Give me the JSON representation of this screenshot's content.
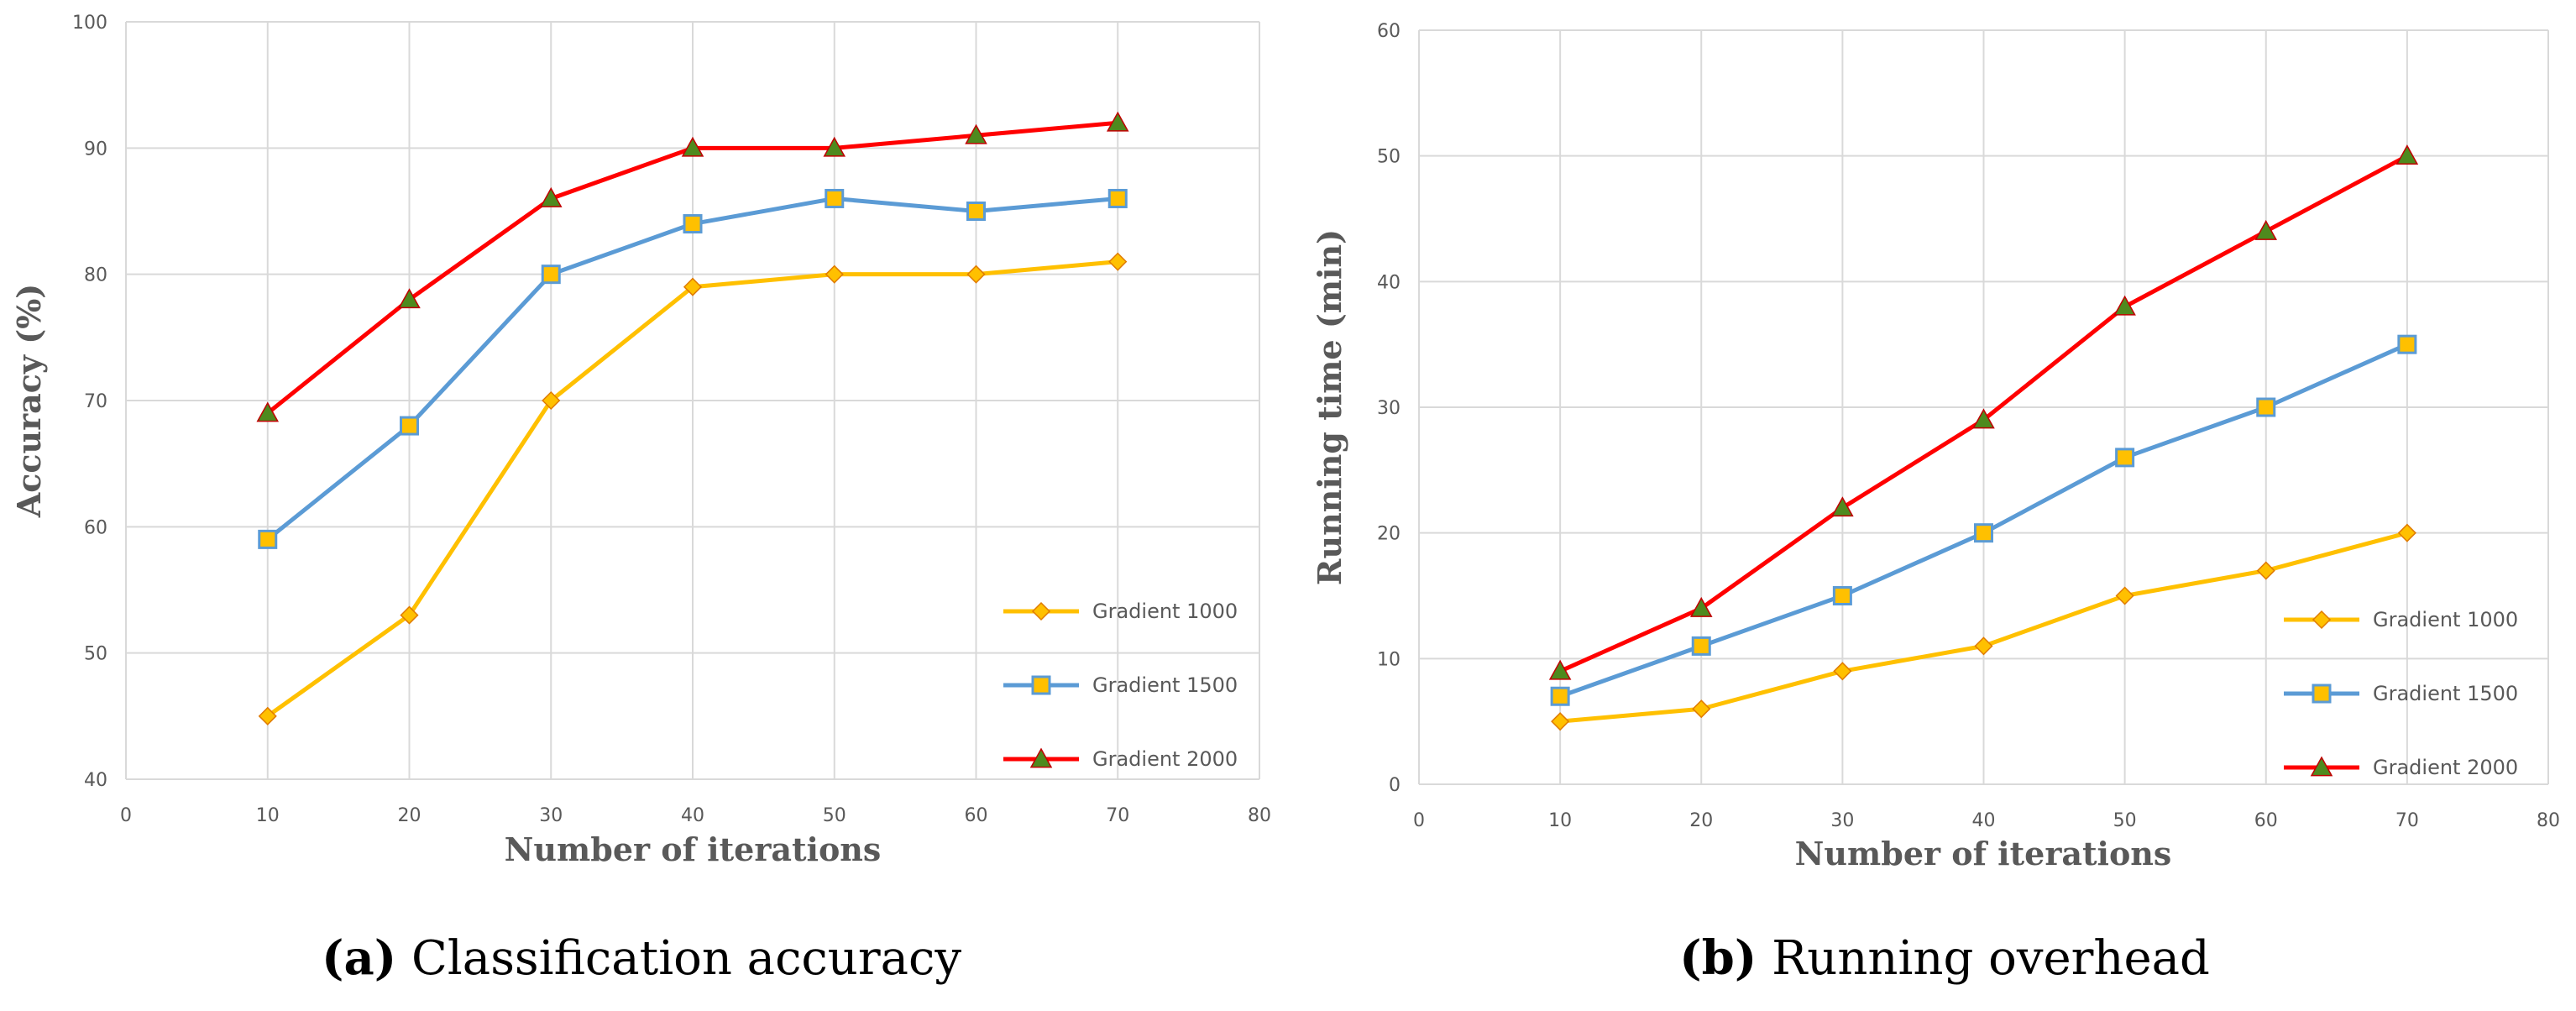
{
  "chart_data": [
    {
      "type": "line",
      "caption_letter": "(a)",
      "caption_text": "Classification accuracy",
      "xlabel": "Number of iterations",
      "ylabel": "Accuracy  (%)",
      "xlim": [
        0,
        80
      ],
      "ylim": [
        40,
        100
      ],
      "xticks": [
        0,
        10,
        20,
        30,
        40,
        50,
        60,
        70,
        80
      ],
      "yticks": [
        40,
        50,
        60,
        70,
        80,
        90,
        100
      ],
      "grid": true,
      "legend_position": "bottom-right",
      "x": [
        10,
        20,
        30,
        40,
        50,
        60,
        70
      ],
      "series": [
        {
          "name": "Gradient 1000",
          "color": "#FFC000",
          "marker": "diamond",
          "values": [
            45,
            53,
            70,
            79,
            80,
            80,
            81
          ]
        },
        {
          "name": "Gradient 1500",
          "color": "#5B9BD5",
          "marker": "square",
          "values": [
            59,
            68,
            80,
            84,
            86,
            85,
            86
          ]
        },
        {
          "name": "Gradient 2000",
          "color": "#FF0000",
          "marker": "triangle",
          "values": [
            69,
            78,
            86,
            90,
            90,
            91,
            92
          ]
        }
      ]
    },
    {
      "type": "line",
      "caption_letter": "(b)",
      "caption_text": "Running overhead",
      "xlabel": "Number of iterations",
      "ylabel": "Running time (min)",
      "xlim": [
        0,
        80
      ],
      "ylim": [
        0,
        60
      ],
      "xticks": [
        0,
        10,
        20,
        30,
        40,
        50,
        60,
        70,
        80
      ],
      "yticks": [
        0,
        10,
        20,
        30,
        40,
        50,
        60
      ],
      "grid": true,
      "legend_position": "bottom-right",
      "x": [
        10,
        20,
        30,
        40,
        50,
        60,
        70
      ],
      "series": [
        {
          "name": "Gradient 1000",
          "color": "#FFC000",
          "marker": "diamond",
          "values": [
            5,
            6,
            9,
            11,
            15,
            17,
            20
          ]
        },
        {
          "name": "Gradient 1500",
          "color": "#5B9BD5",
          "marker": "square",
          "values": [
            7,
            11,
            15,
            20,
            26,
            30,
            35
          ]
        },
        {
          "name": "Gradient 2000",
          "color": "#FF0000",
          "marker": "triangle",
          "values": [
            9,
            14,
            22,
            29,
            38,
            44,
            50
          ]
        }
      ]
    }
  ]
}
